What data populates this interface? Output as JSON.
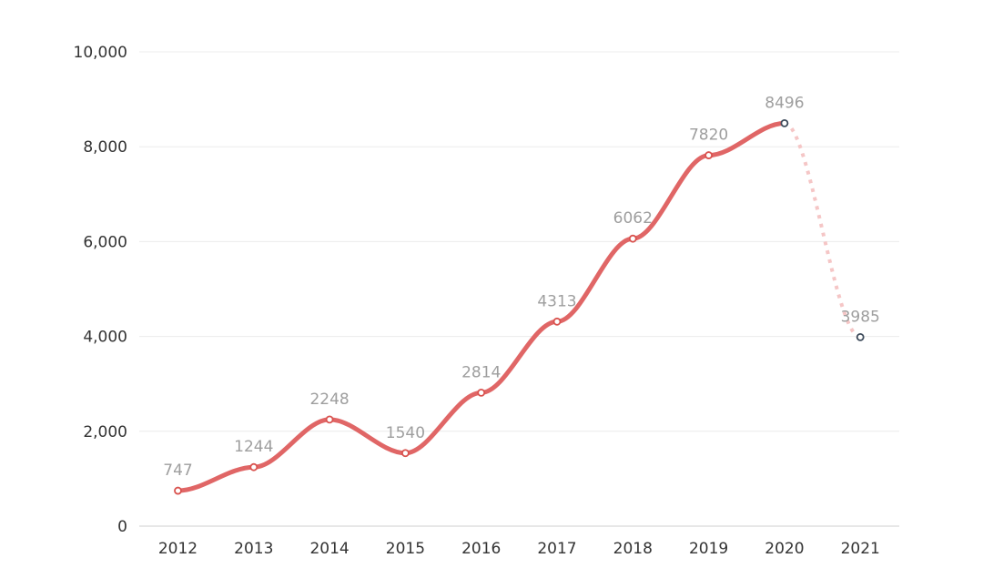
{
  "chart_data": {
    "type": "line",
    "categories": [
      "2012",
      "2013",
      "2014",
      "2015",
      "2016",
      "2017",
      "2018",
      "2019",
      "2020",
      "2021"
    ],
    "series": [
      {
        "values": [
          747,
          1244,
          2248,
          1540,
          2814,
          4313,
          6062,
          7820,
          8496,
          3985
        ]
      }
    ],
    "data_labels": [
      "747",
      "1244",
      "2248",
      "1540",
      "2814",
      "4313",
      "6062",
      "7820",
      "8496",
      "3985"
    ],
    "y_ticks": [
      "0",
      "2,000",
      "4,000",
      "6,000",
      "8,000",
      "10,000"
    ],
    "ylim": [
      0,
      10000
    ],
    "grid": true,
    "smooth": true,
    "final_segment_style": "dashed",
    "title": "",
    "xlabel": "",
    "ylabel": "",
    "colors": {
      "line": "#e06666",
      "line_faded": "#f5c6c6",
      "point_fill": "#ffffff",
      "point_stroke": "#d9534f",
      "highlight_point_stroke": "#3c4a5a",
      "label": "#9e9e9e",
      "tick": "#333333"
    }
  }
}
